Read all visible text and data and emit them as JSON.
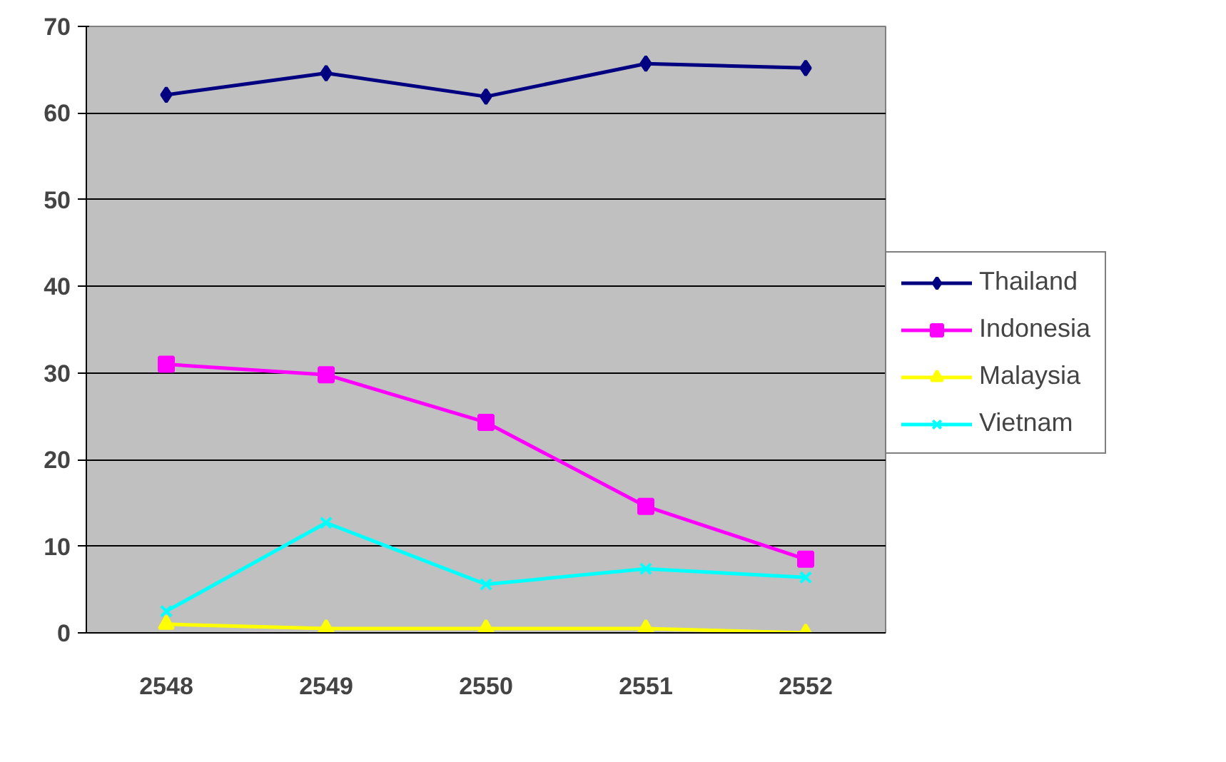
{
  "chart_data": {
    "type": "line",
    "categories": [
      "2548",
      "2549",
      "2550",
      "2551",
      "2552"
    ],
    "series": [
      {
        "name": "Thailand",
        "color": "#000080",
        "marker": "diamond",
        "values": [
          62.1,
          64.6,
          61.9,
          65.7,
          65.2
        ]
      },
      {
        "name": "Indonesia",
        "color": "#ff00ff",
        "marker": "square",
        "values": [
          31.0,
          29.8,
          24.3,
          14.6,
          8.5
        ]
      },
      {
        "name": "Malaysia",
        "color": "#ffff00",
        "marker": "triangle",
        "values": [
          1.0,
          0.5,
          0.5,
          0.5,
          0.0
        ]
      },
      {
        "name": "Vietnam",
        "color": "#00ffff",
        "marker": "cross",
        "values": [
          2.5,
          12.7,
          5.6,
          7.4,
          6.4
        ]
      }
    ],
    "ylim": [
      0,
      70
    ],
    "yticks": [
      0,
      10,
      20,
      30,
      40,
      50,
      60,
      70
    ],
    "grid": "y",
    "legend": "right"
  }
}
